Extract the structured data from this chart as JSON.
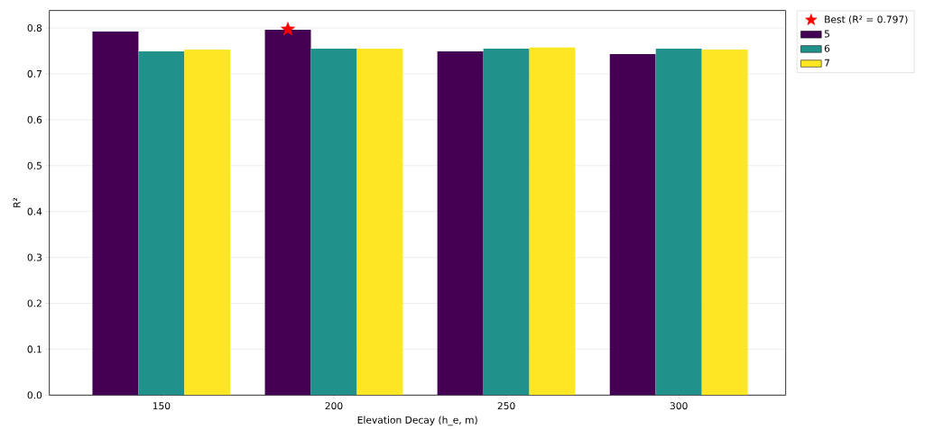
{
  "chart_data": {
    "type": "bar",
    "xlabel": "Elevation Decay (h_e, m)",
    "ylabel": "R²",
    "categories": [
      "150",
      "200",
      "250",
      "300"
    ],
    "series": [
      {
        "name": "Best (R² = 0.797)",
        "type": "scatter",
        "marker": "star",
        "color": "#ff0000",
        "x": [
          "200"
        ],
        "values": [
          0.797
        ]
      },
      {
        "name": "5",
        "color": "#440154",
        "values": [
          0.792,
          0.796,
          0.749,
          0.743
        ]
      },
      {
        "name": "6",
        "color": "#21918c",
        "values": [
          0.749,
          0.755,
          0.755,
          0.755
        ]
      },
      {
        "name": "7",
        "color": "#fde725",
        "values": [
          0.753,
          0.755,
          0.758,
          0.753
        ]
      }
    ],
    "ylim": [
      0,
      0.838
    ],
    "yticks": [
      {
        "value": 0,
        "label": "0.0"
      },
      0.1,
      0.2,
      0.3,
      0.4,
      0.5,
      0.6,
      0.7,
      0.8
    ],
    "grid": "y",
    "legend": "top right"
  }
}
